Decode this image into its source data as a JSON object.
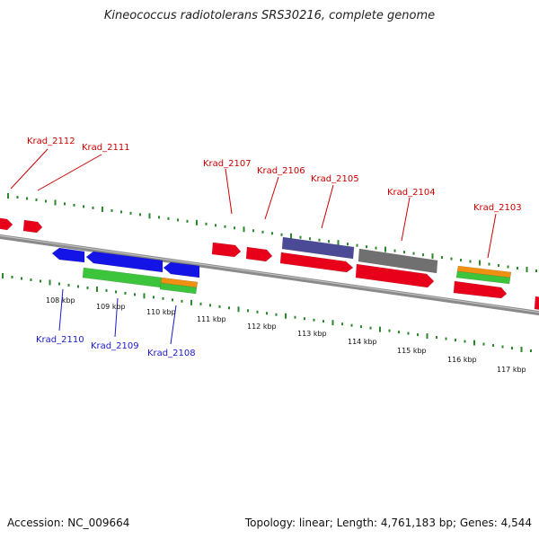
{
  "title": "Kineococcus radiotolerans SRS30216, complete genome",
  "accession": "Accession: NC_009664",
  "topology": "Topology: linear; Length: 4,761,183 bp; Genes: 4,544",
  "colors": {
    "backbone": "#8a8a8a",
    "ticks": "#2a8a2a",
    "gene_red": "#e8001a",
    "gene_blue": "#1414e6",
    "gene_green": "#3cc43c",
    "gene_orange": "#f09010",
    "gene_purple": "#4a4a96",
    "gene_gray": "#707070",
    "label_top": "#cc0000",
    "label_bottom": "#1a1acc"
  },
  "kbp_labels": [
    "108 kbp",
    "109 kbp",
    "110 kbp",
    "111 kbp",
    "112 kbp",
    "113 kbp",
    "114 kbp",
    "115 kbp",
    "116 kbp",
    "117 kbp"
  ],
  "genes_top": [
    {
      "label": "Krad_2112"
    },
    {
      "label": "Krad_2111"
    },
    {
      "label": "Krad_2107"
    },
    {
      "label": "Krad_2106"
    },
    {
      "label": "Krad_2105"
    },
    {
      "label": "Krad_2104"
    },
    {
      "label": "Krad_2103"
    }
  ],
  "genes_bottom": [
    {
      "label": "Krad_2110"
    },
    {
      "label": "Krad_2109"
    },
    {
      "label": "Krad_2108"
    }
  ]
}
